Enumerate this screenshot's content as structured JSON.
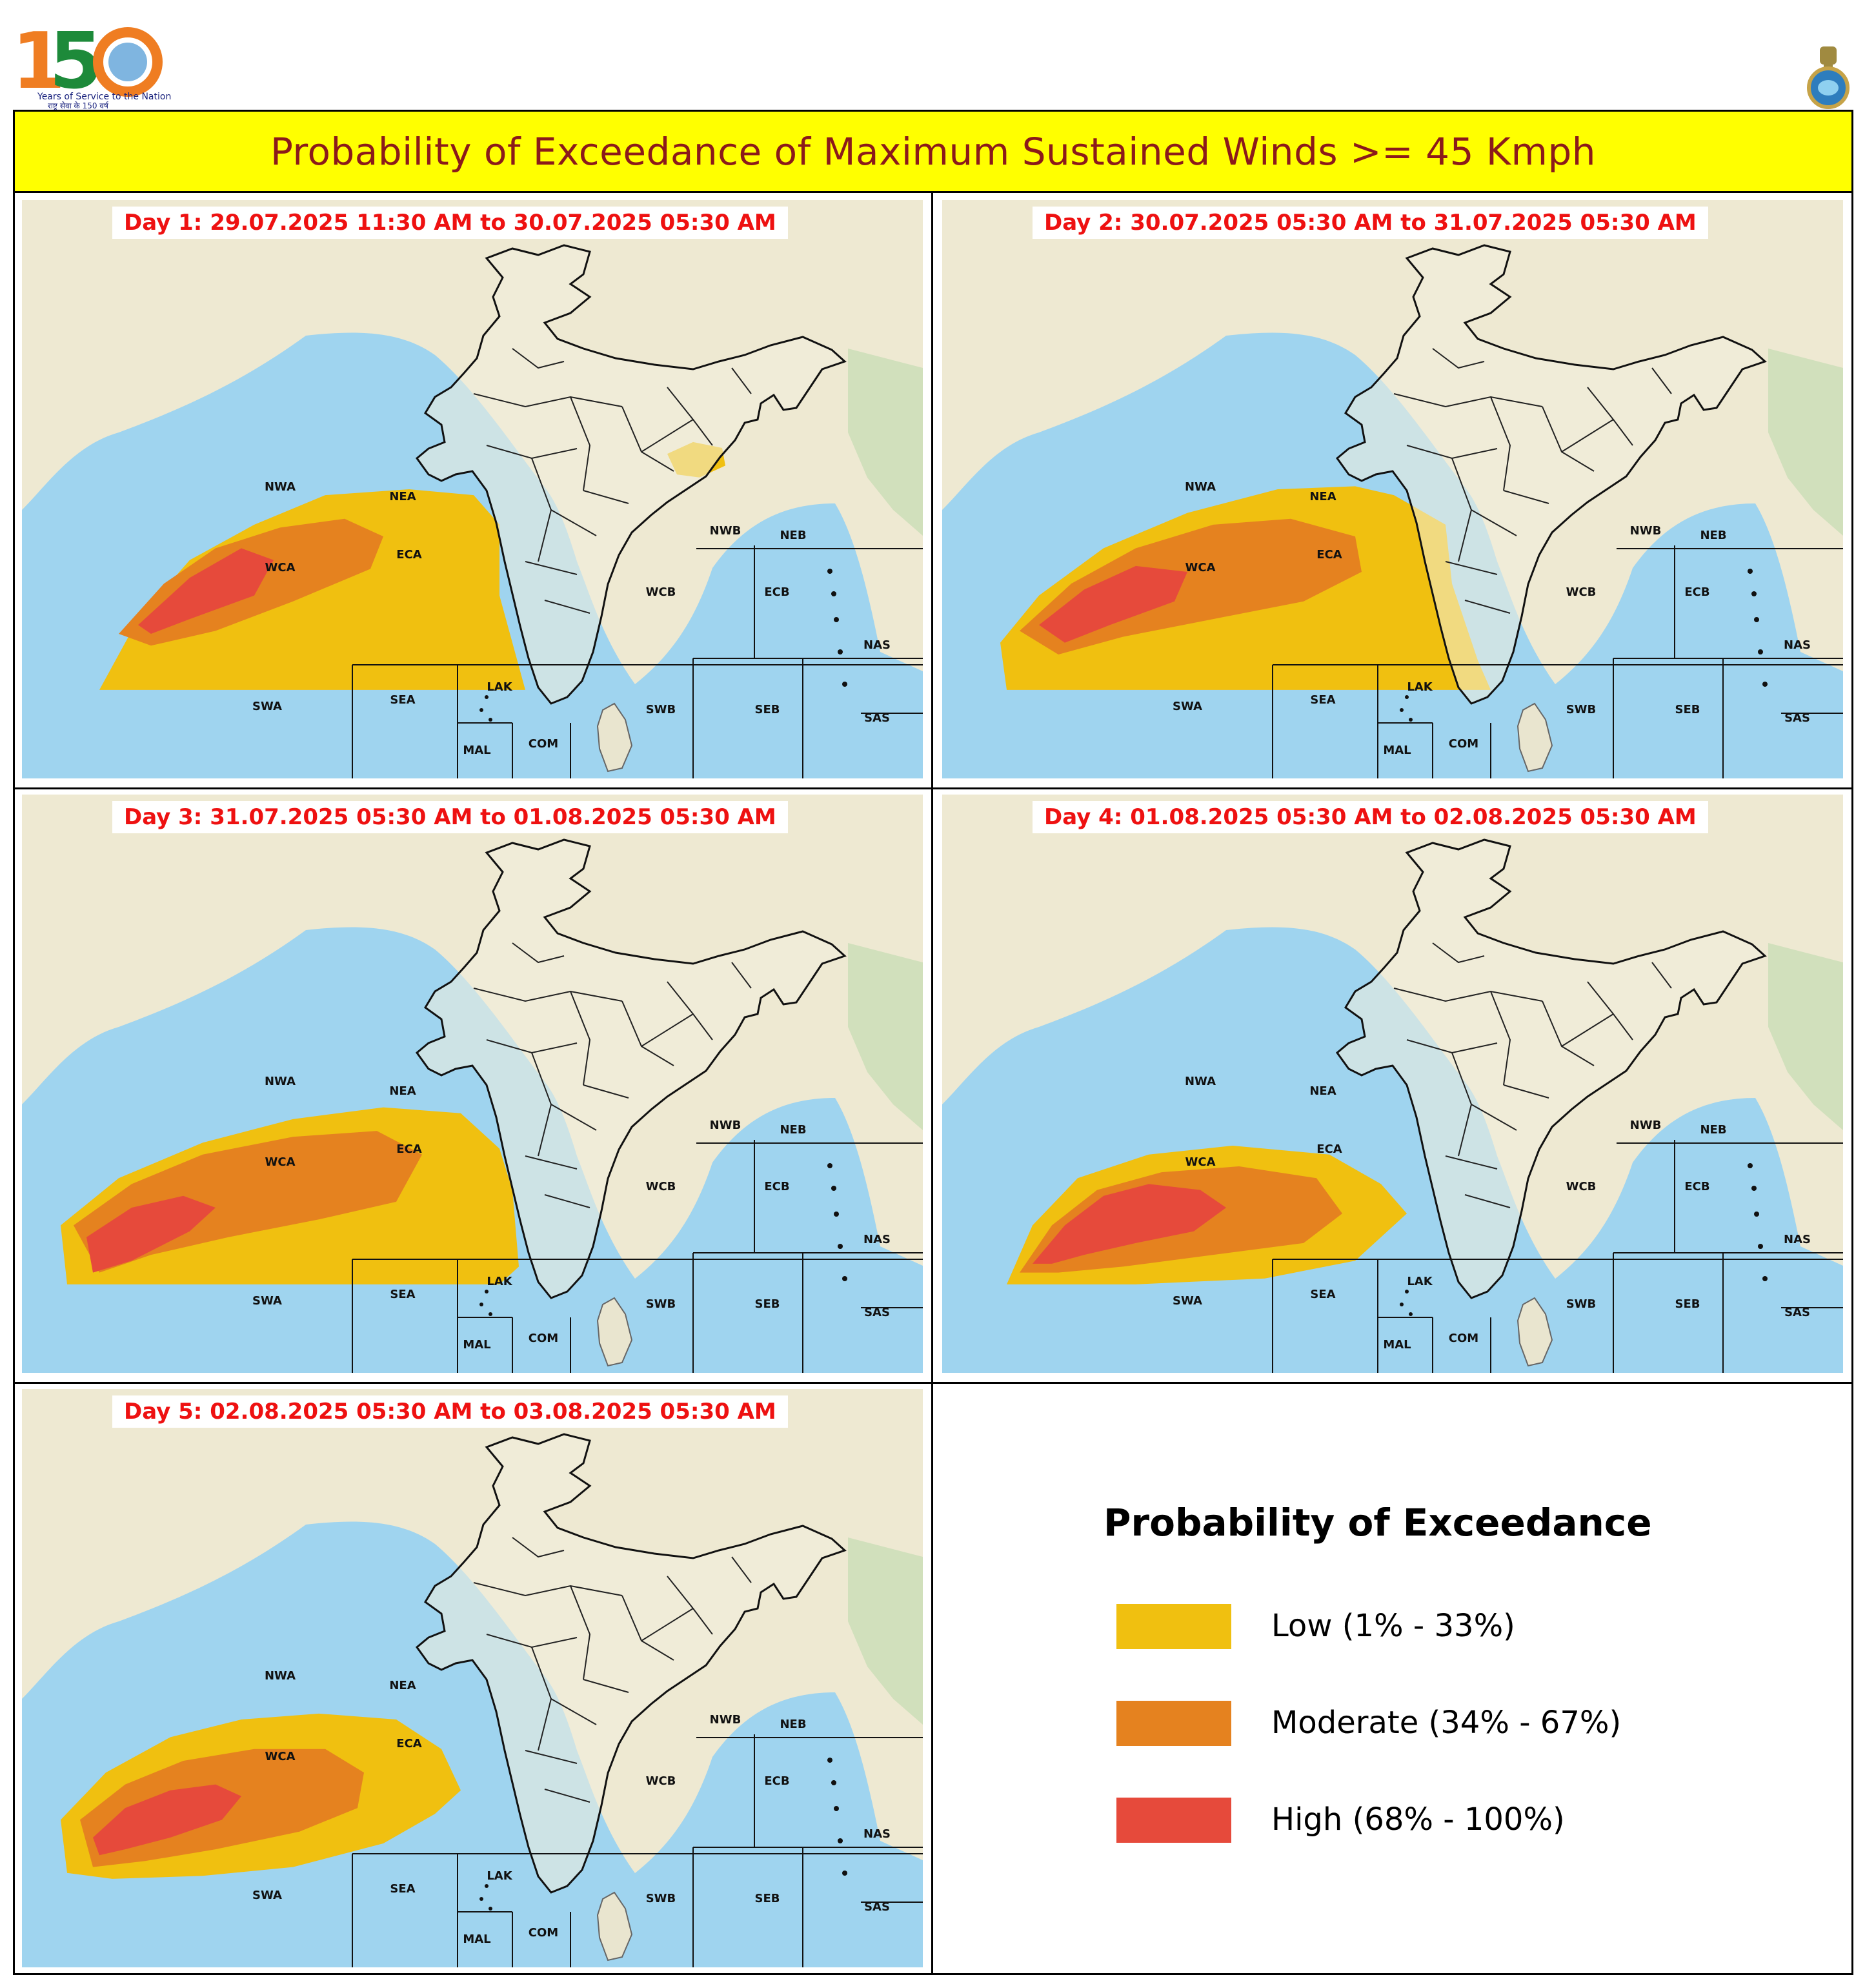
{
  "header": {
    "title": "Probability of Exceedance of Maximum Sustained Winds >= 45 Kmph",
    "logo_text": "150",
    "logo_tagline": "Years of Service to the Nation",
    "logo_tagline_hindi": "राष्ट्र सेवा के 150 वर्ष"
  },
  "colors": {
    "low": "#f0c010",
    "moderate": "#e5821f",
    "high": "#e64a3b",
    "sea": "#9fd4ef",
    "land": "#eee9d2",
    "title_bg": "#ffff00",
    "title_text": "#8b1a1a",
    "day_label": "#ee1111"
  },
  "panels": [
    {
      "label": "Day 1: 29.07.2025 11:30 AM to 30.07.2025 05:30 AM"
    },
    {
      "label": "Day 2: 30.07.2025 05:30 AM to 31.07.2025 05:30 AM"
    },
    {
      "label": "Day 3: 31.07.2025 05:30 AM to 01.08.2025 05:30 AM"
    },
    {
      "label": "Day 4: 01.08.2025 05:30 AM to 02.08.2025 05:30 AM"
    },
    {
      "label": "Day 5: 02.08.2025 05:30 AM to 03.08.2025 05:30 AM"
    }
  ],
  "sea_regions": [
    "NWA",
    "NEA",
    "WCA",
    "ECA",
    "SWA",
    "SEA",
    "LAK",
    "MAL",
    "COM",
    "NWB",
    "NEB",
    "WCB",
    "ECB",
    "SWB",
    "SEB",
    "NAS",
    "SAS"
  ],
  "legend": {
    "title": "Probability of Exceedance",
    "items": [
      {
        "label": "Low (1% - 33%)",
        "color": "#f0c010"
      },
      {
        "label": "Moderate (34% - 67%)",
        "color": "#e5821f"
      },
      {
        "label": "High (68% - 100%)",
        "color": "#e64a3b"
      }
    ]
  }
}
